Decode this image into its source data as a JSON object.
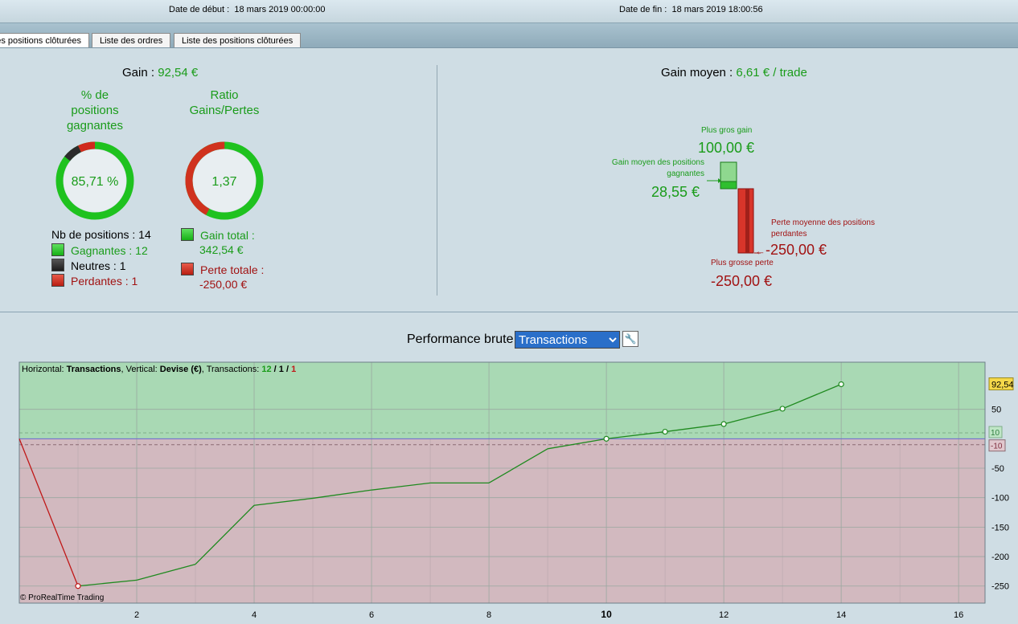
{
  "header": {
    "start_label": "Date de début :",
    "start_value": "18 mars 2019 00:00:00",
    "end_label": "Date de fin :",
    "end_value": "18 mars 2019 18:00:56"
  },
  "tabs": [
    {
      "label": "Liste des positions clôturées",
      "active": true
    },
    {
      "label": "Liste des ordres",
      "active": false
    },
    {
      "label": "Liste des positions clôturées",
      "active": false
    }
  ],
  "summary": {
    "gain_label": "Gain :",
    "gain_value": "92,54 €",
    "pct_title_1": "% de",
    "pct_title_2": "positions",
    "pct_title_3": "gagnantes",
    "pct_value": "85,71 %",
    "ratio_title_1": "Ratio",
    "ratio_title_2": "Gains/Pertes",
    "ratio_value": "1,37",
    "win_fraction": 0.8571,
    "neutral_fraction": 0.0714,
    "loss_fraction": 0.0714,
    "gain_share": 0.578,
    "nb_positions": "Nb de positions : 14",
    "winners": "Gagnantes : 12",
    "neutral": "Neutres : 1",
    "losers": "Perdantes : 1",
    "gain_total_label": "Gain total :",
    "gain_total_value": "342,54 €",
    "loss_total_label": "Perte totale :",
    "loss_total_value": "-250,00 €",
    "avg_gain_label": "Gain moyen :",
    "avg_gain_value": "6,61 € / trade",
    "biggest_gain_label": "Plus gros gain",
    "biggest_gain_value": "100,00 €",
    "avg_win_label_1": "Gain moyen des positions",
    "avg_win_label_2": "gagnantes",
    "avg_win_value": "28,55 €",
    "avg_loss_label_1": "Perte moyenne des positions",
    "avg_loss_label_2": "perdantes",
    "avg_loss_value": "-250,00 €",
    "biggest_loss_label": "Plus grosse perte",
    "biggest_loss_value": "-250,00 €"
  },
  "performance": {
    "label": "Performance brute",
    "selected": "Transactions",
    "wrench_icon": "wrench-icon"
  },
  "chart_data": {
    "type": "line",
    "info_prefix": "Horizontal:",
    "info_h": "Transactions",
    "info_mid": ", Vertical:",
    "info_v": "Devise (€)",
    "info_tx_label": ", Transactions:",
    "info_win": "12",
    "info_neutral": "1",
    "info_loss": "1",
    "watermark": "© ProRealTime Trading",
    "x": [
      0,
      1,
      2,
      3,
      4,
      5,
      6,
      7,
      8,
      9,
      10,
      11,
      12,
      13,
      14
    ],
    "y": [
      0,
      -250,
      -240,
      -213,
      -113,
      -101,
      -87,
      -75,
      -75,
      -17,
      0,
      12,
      25,
      51,
      92.54
    ],
    "marker_indices": [
      1,
      10,
      11,
      12,
      13,
      14
    ],
    "xlim": [
      0,
      16.45
    ],
    "ylim": [
      -279,
      130
    ],
    "x_ticks": [
      "2",
      "4",
      "6",
      "8",
      "10",
      "12",
      "14",
      "16"
    ],
    "y_ticks": [
      "50",
      "-50",
      "-100",
      "-150",
      "-200",
      "-250"
    ],
    "last_value_label": "92,54",
    "upper_band_label": "10",
    "lower_band_label": "-10",
    "colors": {
      "gain": "#1f8a1f",
      "loss": "#c01818",
      "bg_gain": "#a9d9b4",
      "bg_loss": "#d2b9bf"
    }
  }
}
